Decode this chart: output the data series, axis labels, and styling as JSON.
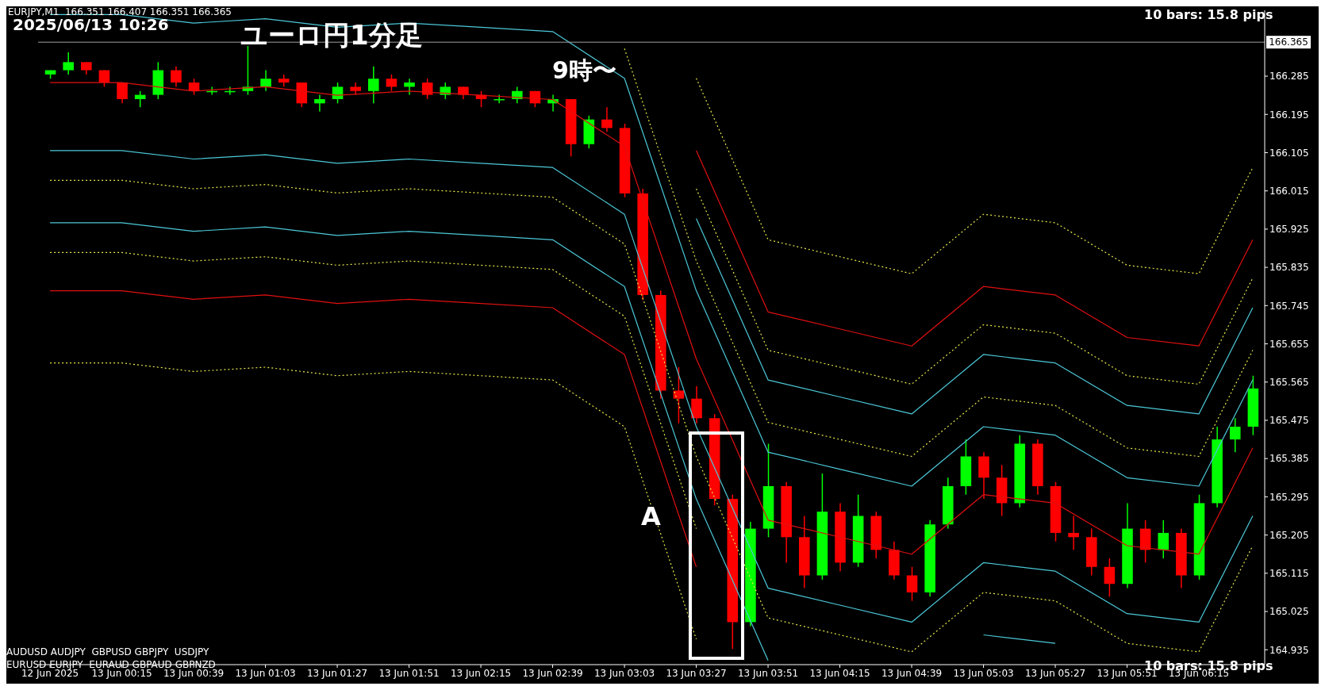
{
  "chart_data": {
    "type": "candlestick",
    "title": "ユーロ円1分足",
    "annotations": [
      "EURJPY,M1  166.351 166.407 166.351 166.365",
      "2025/06/13 10:26",
      "9時〜",
      "A",
      "10 bars: 15.8 pips",
      "10 bars: 15.8 pips",
      "AUDUSD AUDJPY  GBPUSD GBPJPY  USDJPY",
      "EURUSD EURJPY  EURAUD GBPAUD GBPNZD"
    ],
    "x": [
      "2025-06-12T23:51",
      "2025-06-12T23:57",
      "2025-06-13T00:03",
      "2025-06-13T00:09",
      "2025-06-13T00:15",
      "2025-06-13T00:21",
      "2025-06-13T00:27",
      "2025-06-13T00:33",
      "2025-06-13T00:39",
      "2025-06-13T00:45",
      "2025-06-13T00:51",
      "2025-06-13T00:57",
      "2025-06-13T01:03",
      "2025-06-13T01:09",
      "2025-06-13T01:15",
      "2025-06-13T01:21",
      "2025-06-13T01:27",
      "2025-06-13T01:33",
      "2025-06-13T01:39",
      "2025-06-13T01:45",
      "2025-06-13T01:51",
      "2025-06-13T01:57",
      "2025-06-13T02:03",
      "2025-06-13T02:09",
      "2025-06-13T02:15",
      "2025-06-13T02:21",
      "2025-06-13T02:27",
      "2025-06-13T02:33",
      "2025-06-13T02:39",
      "2025-06-13T02:45",
      "2025-06-13T02:51",
      "2025-06-13T02:57",
      "2025-06-13T03:03",
      "2025-06-13T03:09",
      "2025-06-13T03:15",
      "2025-06-13T03:21",
      "2025-06-13T03:27",
      "2025-06-13T03:33",
      "2025-06-13T03:39",
      "2025-06-13T03:45",
      "2025-06-13T03:51",
      "2025-06-13T03:57",
      "2025-06-13T04:03",
      "2025-06-13T04:09",
      "2025-06-13T04:15",
      "2025-06-13T04:21",
      "2025-06-13T04:27",
      "2025-06-13T04:33",
      "2025-06-13T04:39",
      "2025-06-13T04:45",
      "2025-06-13T04:51",
      "2025-06-13T04:57",
      "2025-06-13T05:03",
      "2025-06-13T05:09",
      "2025-06-13T05:15",
      "2025-06-13T05:21",
      "2025-06-13T05:27",
      "2025-06-13T05:33",
      "2025-06-13T05:39",
      "2025-06-13T05:45",
      "2025-06-13T05:51",
      "2025-06-13T05:57",
      "2025-06-13T06:03",
      "2025-06-13T06:09",
      "2025-06-13T06:15",
      "2025-06-13T06:21",
      "2025-06-13T06:27",
      "2025-06-13T06:33"
    ],
    "ohlc": [
      [
        166.289,
        166.299,
        166.279,
        166.299
      ],
      [
        166.299,
        166.341,
        166.289,
        166.318
      ],
      [
        166.318,
        166.318,
        166.289,
        166.299
      ],
      [
        166.299,
        166.299,
        166.26,
        166.27
      ],
      [
        166.27,
        166.27,
        166.221,
        166.231
      ],
      [
        166.231,
        166.25,
        166.212,
        166.241
      ],
      [
        166.241,
        166.318,
        166.231,
        166.299
      ],
      [
        166.299,
        166.308,
        166.26,
        166.27
      ],
      [
        166.27,
        166.279,
        166.241,
        166.25
      ],
      [
        166.25,
        166.26,
        166.241,
        166.25
      ],
      [
        166.25,
        166.26,
        166.241,
        166.25
      ],
      [
        166.25,
        166.356,
        166.241,
        166.26
      ],
      [
        166.26,
        166.299,
        166.25,
        166.279
      ],
      [
        166.279,
        166.289,
        166.26,
        166.27
      ],
      [
        166.27,
        166.27,
        166.212,
        166.221
      ],
      [
        166.221,
        166.241,
        166.202,
        166.231
      ],
      [
        166.231,
        166.27,
        166.221,
        166.26
      ],
      [
        166.26,
        166.27,
        166.241,
        166.25
      ],
      [
        166.25,
        166.308,
        166.221,
        166.279
      ],
      [
        166.279,
        166.289,
        166.25,
        166.26
      ],
      [
        166.26,
        166.279,
        166.241,
        166.27
      ],
      [
        166.27,
        166.279,
        166.231,
        166.241
      ],
      [
        166.241,
        166.27,
        166.231,
        166.26
      ],
      [
        166.26,
        166.26,
        166.231,
        166.241
      ],
      [
        166.241,
        166.25,
        166.212,
        166.231
      ],
      [
        166.231,
        166.241,
        166.221,
        166.231
      ],
      [
        166.231,
        166.26,
        166.221,
        166.25
      ],
      [
        166.25,
        166.25,
        166.212,
        166.221
      ],
      [
        166.221,
        166.241,
        166.202,
        166.231
      ],
      [
        166.231,
        166.231,
        166.096,
        166.125
      ],
      [
        166.125,
        166.192,
        166.115,
        166.183
      ],
      [
        166.183,
        166.212,
        166.154,
        166.163
      ],
      [
        166.163,
        166.173,
        166.0,
        166.009
      ],
      [
        166.009,
        166.02,
        165.758,
        165.77
      ],
      [
        165.77,
        165.78,
        165.526,
        165.545
      ],
      [
        165.545,
        165.6,
        165.468,
        165.526
      ],
      [
        165.526,
        165.555,
        165.468,
        165.48
      ],
      [
        165.48,
        165.49,
        165.275,
        165.29
      ],
      [
        165.29,
        165.3,
        164.937,
        165.0
      ],
      [
        165.0,
        165.236,
        164.99,
        165.22
      ],
      [
        165.22,
        165.42,
        165.2,
        165.32
      ],
      [
        165.32,
        165.33,
        165.14,
        165.2
      ],
      [
        165.2,
        165.25,
        165.08,
        165.11
      ],
      [
        165.11,
        165.35,
        165.1,
        165.26
      ],
      [
        165.26,
        165.28,
        165.12,
        165.14
      ],
      [
        165.14,
        165.3,
        165.13,
        165.25
      ],
      [
        165.25,
        165.26,
        165.15,
        165.17
      ],
      [
        165.17,
        165.19,
        165.1,
        165.11
      ],
      [
        165.11,
        165.13,
        165.05,
        165.07
      ],
      [
        165.07,
        165.24,
        165.06,
        165.23
      ],
      [
        165.23,
        165.34,
        165.22,
        165.32
      ],
      [
        165.32,
        165.43,
        165.3,
        165.39
      ],
      [
        165.39,
        165.4,
        165.29,
        165.34
      ],
      [
        165.34,
        165.37,
        165.25,
        165.28
      ],
      [
        165.28,
        165.44,
        165.27,
        165.42
      ],
      [
        165.42,
        165.43,
        165.3,
        165.32
      ],
      [
        165.32,
        165.33,
        165.19,
        165.21
      ],
      [
        165.21,
        165.25,
        165.17,
        165.2
      ],
      [
        165.2,
        165.22,
        165.11,
        165.13
      ],
      [
        165.13,
        165.15,
        165.06,
        165.09
      ],
      [
        165.09,
        165.28,
        165.08,
        165.22
      ],
      [
        165.22,
        165.24,
        165.14,
        165.17
      ],
      [
        165.17,
        165.24,
        165.15,
        165.21
      ],
      [
        165.21,
        165.22,
        165.08,
        165.11
      ],
      [
        165.11,
        165.3,
        165.1,
        165.28
      ],
      [
        165.28,
        165.46,
        165.27,
        165.43
      ],
      [
        165.43,
        165.48,
        165.4,
        165.46
      ],
      [
        165.46,
        165.58,
        165.44,
        165.55
      ]
    ],
    "colors": [
      "#00ff00",
      "#00ff00",
      "#ff0000",
      "#ff0000",
      "#ff0000",
      "#00ff00",
      "#00ff00",
      "#ff0000",
      "#ff0000",
      "#00ff00",
      "#00ff00",
      "#00ff00",
      "#00ff00",
      "#ff0000",
      "#ff0000",
      "#00ff00",
      "#00ff00",
      "#ff0000",
      "#00ff00",
      "#ff0000",
      "#00ff00",
      "#ff0000",
      "#00ff00",
      "#ff0000",
      "#ff0000",
      "#00ff00",
      "#00ff00",
      "#ff0000",
      "#00ff00",
      "#ff0000",
      "#00ff00",
      "#ff0000",
      "#ff0000",
      "#ff0000",
      "#ff0000",
      "#ff0000",
      "#ff0000",
      "#ff0000",
      "#ff0000",
      "#00ff00",
      "#00ff00",
      "#ff0000",
      "#ff0000",
      "#00ff00",
      "#ff0000",
      "#00ff00",
      "#ff0000",
      "#ff0000",
      "#ff0000",
      "#00ff00",
      "#00ff00",
      "#00ff00",
      "#ff0000",
      "#ff0000",
      "#00ff00",
      "#ff0000",
      "#ff0000",
      "#ff0000",
      "#ff0000",
      "#ff0000",
      "#00ff00",
      "#ff0000",
      "#00ff00",
      "#ff0000",
      "#00ff00",
      "#00ff00",
      "#00ff00",
      "#00ff00"
    ],
    "series": [
      {
        "type": "line",
        "color": "#e8e84a",
        "line_style": "dotted",
        "x": [
          "2025-06-13T03:27",
          "2025-06-13T03:51",
          "2025-06-13T04:15",
          "2025-06-13T04:39",
          "2025-06-13T05:03",
          "2025-06-13T05:27",
          "2025-06-13T05:51",
          "2025-06-13T06:15",
          "2025-06-13T06:33"
        ],
        "values": [
          166.28,
          165.9,
          165.86,
          165.82,
          165.96,
          165.94,
          165.84,
          165.82,
          166.07
        ]
      },
      {
        "type": "line",
        "color": "#e01010",
        "line_style": "solid",
        "x": [
          "2025-06-13T03:27",
          "2025-06-13T03:51",
          "2025-06-13T04:15",
          "2025-06-13T04:39",
          "2025-06-13T05:03",
          "2025-06-13T05:27",
          "2025-06-13T05:51",
          "2025-06-13T06:15",
          "2025-06-13T06:33"
        ],
        "values": [
          166.11,
          165.73,
          165.69,
          165.65,
          165.79,
          165.77,
          165.67,
          165.65,
          165.9
        ]
      },
      {
        "type": "line",
        "color": "#e8e84a",
        "line_style": "dotted",
        "x": [
          "2025-06-13T03:27",
          "2025-06-13T03:51",
          "2025-06-13T04:15",
          "2025-06-13T04:39",
          "2025-06-13T05:03",
          "2025-06-13T05:27",
          "2025-06-13T05:51",
          "2025-06-13T06:15",
          "2025-06-13T06:33"
        ],
        "values": [
          166.02,
          165.64,
          165.6,
          165.56,
          165.7,
          165.68,
          165.58,
          165.56,
          165.81
        ]
      },
      {
        "type": "line",
        "color": "#4cc8d8",
        "line_style": "solid",
        "x": [
          "2025-06-13T03:27",
          "2025-06-13T03:51",
          "2025-06-13T04:15",
          "2025-06-13T04:39",
          "2025-06-13T05:03",
          "2025-06-13T05:27",
          "2025-06-13T05:51",
          "2025-06-13T06:15",
          "2025-06-13T06:33"
        ],
        "values": [
          165.95,
          165.57,
          165.53,
          165.49,
          165.63,
          165.61,
          165.51,
          165.49,
          165.74
        ]
      },
      {
        "type": "line",
        "color": "#e8e84a",
        "line_style": "dotted",
        "x": [
          "2025-06-13T03:03",
          "2025-06-13T03:27",
          "2025-06-13T03:51",
          "2025-06-13T04:15",
          "2025-06-13T04:39",
          "2025-06-13T05:03",
          "2025-06-13T05:27",
          "2025-06-13T05:51",
          "2025-06-13T06:15",
          "2025-06-13T06:33"
        ],
        "values": [
          166.35,
          165.85,
          165.47,
          165.43,
          165.39,
          165.53,
          165.51,
          165.41,
          165.39,
          165.64
        ]
      },
      {
        "type": "line",
        "color": "#4cc8d8",
        "line_style": "solid",
        "x": [
          "2025-06-12T23:51",
          "2025-06-13T00:15",
          "2025-06-13T00:39",
          "2025-06-13T01:03",
          "2025-06-13T01:27",
          "2025-06-13T01:51",
          "2025-06-13T02:15",
          "2025-06-13T02:39",
          "2025-06-13T03:03",
          "2025-06-13T03:27",
          "2025-06-13T03:51",
          "2025-06-13T04:15",
          "2025-06-13T04:39",
          "2025-06-13T05:03",
          "2025-06-13T05:27",
          "2025-06-13T05:51",
          "2025-06-13T06:15",
          "2025-06-13T06:33"
        ],
        "values": [
          166.43,
          166.43,
          166.41,
          166.42,
          166.4,
          166.41,
          166.4,
          166.39,
          166.28,
          165.78,
          165.4,
          165.36,
          165.32,
          165.46,
          165.44,
          165.34,
          165.32,
          165.57
        ]
      },
      {
        "type": "line",
        "color": "#e01010",
        "line_style": "solid",
        "x": [
          "2025-06-12T23:51",
          "2025-06-13T00:15",
          "2025-06-13T00:39",
          "2025-06-13T01:03",
          "2025-06-13T01:27",
          "2025-06-13T01:51",
          "2025-06-13T02:15",
          "2025-06-13T02:39",
          "2025-06-13T03:03",
          "2025-06-13T03:27",
          "2025-06-13T03:51",
          "2025-06-13T04:15",
          "2025-06-13T04:39",
          "2025-06-13T05:03",
          "2025-06-13T05:27",
          "2025-06-13T05:51",
          "2025-06-13T06:15",
          "2025-06-13T06:33"
        ],
        "values": [
          166.27,
          166.27,
          166.25,
          166.26,
          166.24,
          166.25,
          166.24,
          166.23,
          166.12,
          165.62,
          165.24,
          165.2,
          165.16,
          165.3,
          165.28,
          165.18,
          165.16,
          165.41
        ]
      },
      {
        "type": "line",
        "color": "#4cc8d8",
        "line_style": "solid",
        "x": [
          "2025-06-12T23:51",
          "2025-06-13T00:15",
          "2025-06-13T00:39",
          "2025-06-13T01:03",
          "2025-06-13T01:27",
          "2025-06-13T01:51",
          "2025-06-13T02:15",
          "2025-06-13T02:39",
          "2025-06-13T03:03",
          "2025-06-13T03:27",
          "2025-06-13T03:51",
          "2025-06-13T04:15",
          "2025-06-13T04:39",
          "2025-06-13T05:03",
          "2025-06-13T05:27",
          "2025-06-13T05:51",
          "2025-06-13T06:15",
          "2025-06-13T06:33"
        ],
        "values": [
          166.11,
          166.11,
          166.09,
          166.1,
          166.08,
          166.09,
          166.08,
          166.07,
          165.96,
          165.46,
          165.08,
          165.04,
          165.0,
          165.14,
          165.12,
          165.02,
          165.0,
          165.25
        ]
      },
      {
        "type": "line",
        "color": "#e8e84a",
        "line_style": "dotted",
        "x": [
          "2025-06-12T23:51",
          "2025-06-13T00:15",
          "2025-06-13T00:39",
          "2025-06-13T01:03",
          "2025-06-13T01:27",
          "2025-06-13T01:51",
          "2025-06-13T02:15",
          "2025-06-13T02:39",
          "2025-06-13T03:03",
          "2025-06-13T03:27",
          "2025-06-13T03:51",
          "2025-06-13T04:15",
          "2025-06-13T04:39",
          "2025-06-13T05:03",
          "2025-06-13T05:27",
          "2025-06-13T05:51",
          "2025-06-13T06:15",
          "2025-06-13T06:33"
        ],
        "values": [
          166.04,
          166.04,
          166.02,
          166.03,
          166.01,
          166.02,
          166.01,
          166.0,
          165.89,
          165.39,
          165.01,
          164.97,
          164.93,
          165.07,
          165.05,
          164.95,
          164.93,
          165.18
        ]
      },
      {
        "type": "line",
        "color": "#4cc8d8",
        "line_style": "solid",
        "x": [
          "2025-06-12T23:51",
          "2025-06-13T00:15",
          "2025-06-13T00:39",
          "2025-06-13T01:03",
          "2025-06-13T01:27",
          "2025-06-13T01:51",
          "2025-06-13T02:15",
          "2025-06-13T02:39",
          "2025-06-13T03:03",
          "2025-06-13T03:27",
          "2025-06-13T03:51",
          "2025-06-13T04:15",
          "2025-06-13T04:39",
          "2025-06-13T05:03",
          "2025-06-13T05:27"
        ],
        "values": [
          165.94,
          165.94,
          165.92,
          165.93,
          165.91,
          165.92,
          165.91,
          165.9,
          165.79,
          165.29,
          164.91,
          null,
          null,
          164.97,
          164.95
        ]
      },
      {
        "type": "line",
        "color": "#e8e84a",
        "line_style": "dotted",
        "x": [
          "2025-06-12T23:51",
          "2025-06-13T00:15",
          "2025-06-13T00:39",
          "2025-06-13T01:03",
          "2025-06-13T01:27",
          "2025-06-13T01:51",
          "2025-06-13T02:15",
          "2025-06-13T02:39",
          "2025-06-13T03:03",
          "2025-06-13T03:27"
        ],
        "values": [
          165.87,
          165.87,
          165.85,
          165.86,
          165.84,
          165.85,
          165.84,
          165.83,
          165.72,
          165.22
        ]
      },
      {
        "type": "line",
        "color": "#e01010",
        "line_style": "solid",
        "x": [
          "2025-06-12T23:51",
          "2025-06-13T00:15",
          "2025-06-13T00:39",
          "2025-06-13T01:03",
          "2025-06-13T01:27",
          "2025-06-13T01:51",
          "2025-06-13T02:15",
          "2025-06-13T02:39",
          "2025-06-13T03:03",
          "2025-06-13T03:27"
        ],
        "values": [
          165.78,
          165.78,
          165.76,
          165.77,
          165.75,
          165.76,
          165.75,
          165.74,
          165.63,
          165.13
        ]
      },
      {
        "type": "line",
        "color": "#e8e84a",
        "line_style": "dotted",
        "x": [
          "2025-06-12T23:51",
          "2025-06-13T00:15",
          "2025-06-13T00:39",
          "2025-06-13T01:03",
          "2025-06-13T01:27",
          "2025-06-13T01:51",
          "2025-06-13T02:15",
          "2025-06-13T02:39",
          "2025-06-13T03:03",
          "2025-06-13T03:27"
        ],
        "values": [
          165.61,
          165.61,
          165.59,
          165.6,
          165.58,
          165.59,
          165.58,
          165.57,
          165.46,
          164.96
        ]
      }
    ],
    "xlim": [
      "2025-06-12T23:47",
      "2025-06-13T06:37"
    ],
    "xticks": [
      {
        "value": "2025-06-12T23:51",
        "label": "12 Jun 2025"
      },
      {
        "value": "2025-06-13T00:15",
        "label": "13 Jun 00:15"
      },
      {
        "value": "2025-06-13T00:39",
        "label": "13 Jun 00:39"
      },
      {
        "value": "2025-06-13T01:03",
        "label": "13 Jun 01:03"
      },
      {
        "value": "2025-06-13T01:27",
        "label": "13 Jun 01:27"
      },
      {
        "value": "2025-06-13T01:51",
        "label": "13 Jun 01:51"
      },
      {
        "value": "2025-06-13T02:15",
        "label": "13 Jun 02:15"
      },
      {
        "value": "2025-06-13T02:39",
        "label": "13 Jun 02:39"
      },
      {
        "value": "2025-06-13T03:03",
        "label": "13 Jun 03:03"
      },
      {
        "value": "2025-06-13T03:27",
        "label": "13 Jun 03:27"
      },
      {
        "value": "2025-06-13T03:51",
        "label": "13 Jun 03:51"
      },
      {
        "value": "2025-06-13T04:15",
        "label": "13 Jun 04:15"
      },
      {
        "value": "2025-06-13T04:39",
        "label": "13 Jun 04:39"
      },
      {
        "value": "2025-06-13T05:03",
        "label": "13 Jun 05:03"
      },
      {
        "value": "2025-06-13T05:27",
        "label": "13 Jun 05:27"
      },
      {
        "value": "2025-06-13T05:51",
        "label": "13 Jun 05:51"
      },
      {
        "value": "2025-06-13T06:15",
        "label": "13 Jun 06:15"
      }
    ],
    "ylim": [
      164.9,
      166.44
    ],
    "yticks": [
      164.935,
      165.025,
      165.115,
      165.205,
      165.295,
      165.385,
      165.475,
      165.565,
      165.655,
      165.745,
      165.835,
      165.925,
      166.015,
      166.105,
      166.195,
      166.285
    ],
    "ref_lines": [
      {
        "axis": "y",
        "value": 166.365,
        "label": "166.365",
        "color": "#a0a0a0"
      }
    ]
  }
}
